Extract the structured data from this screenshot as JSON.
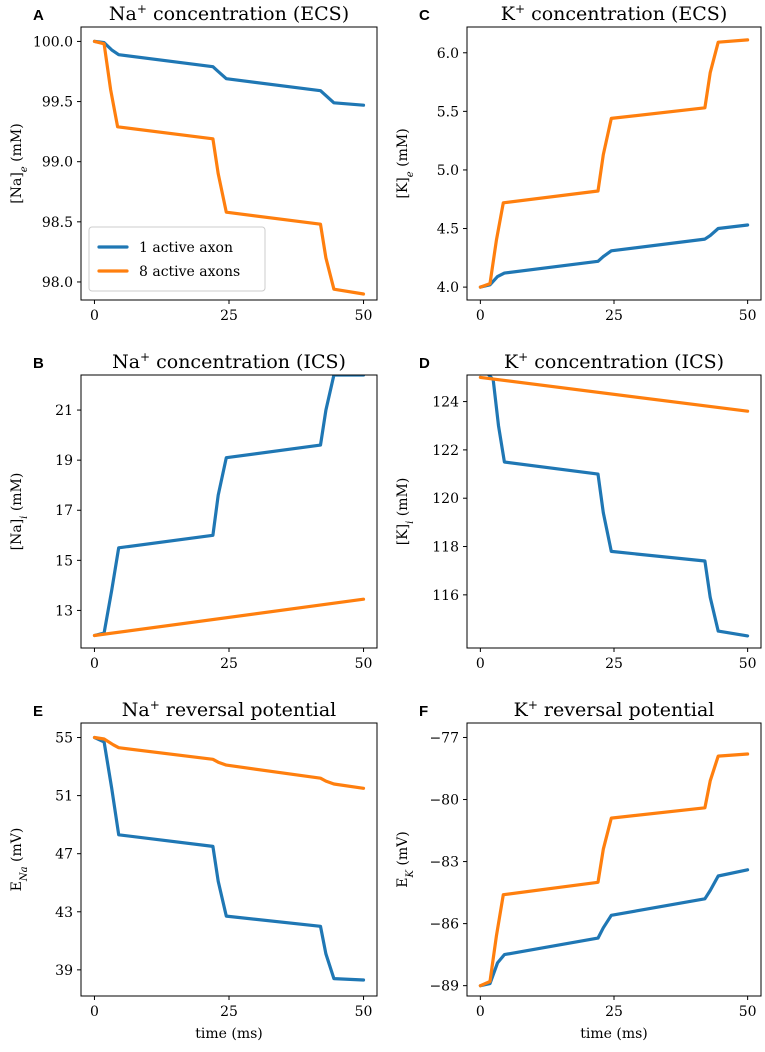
{
  "colors": {
    "active_1": "#1f77b4",
    "active_8": "#ff7f0e"
  },
  "legend": {
    "items": [
      "1 active axon",
      "8 active axons"
    ],
    "placement": "lower-left",
    "panel": 0
  },
  "chart_data": [
    {
      "type": "line",
      "letter": "A",
      "title_main": "Na",
      "title_sup": "+",
      "title_rest": " concentration (ECS)",
      "ylabel_main": "[Na]",
      "ylabel_sub": "e",
      "ylabel_rest": " (mM)",
      "xlabel": "",
      "xlim": [
        -2.5,
        52.5
      ],
      "ylim": [
        97.85,
        100.12
      ],
      "xticks": [
        0,
        25,
        50
      ],
      "xtick_labels": [
        "0",
        "25",
        "50"
      ],
      "yticks": [
        98.0,
        98.5,
        99.0,
        99.5,
        100.0
      ],
      "ytick_labels": [
        "98.0",
        "98.5",
        "99.0",
        "99.5",
        "100.0"
      ],
      "series": [
        {
          "name": "1 active axon",
          "color_key": "active_1",
          "x": [
            0,
            1.8,
            3.2,
            4.5,
            22,
            23,
            24.5,
            42,
            43,
            44.5,
            50
          ],
          "y": [
            100.0,
            99.99,
            99.93,
            99.89,
            99.79,
            99.75,
            99.69,
            99.59,
            99.55,
            99.49,
            99.47
          ]
        },
        {
          "name": "8 active axons",
          "color_key": "active_8",
          "x": [
            0,
            1.8,
            3,
            4.3,
            22,
            23,
            24.5,
            42,
            43,
            44.5,
            50
          ],
          "y": [
            100.0,
            99.98,
            99.6,
            99.29,
            99.19,
            98.9,
            98.58,
            98.48,
            98.2,
            97.94,
            97.9
          ]
        }
      ]
    },
    {
      "type": "line",
      "letter": "C",
      "title_main": "K",
      "title_sup": "+",
      "title_rest": " concentration (ECS)",
      "ylabel_main": "[K]",
      "ylabel_sub": "e",
      "ylabel_rest": " (mM)",
      "xlabel": "",
      "xlim": [
        -2.5,
        52.5
      ],
      "ylim": [
        3.89,
        6.22
      ],
      "xticks": [
        0,
        25,
        50
      ],
      "xtick_labels": [
        "0",
        "25",
        "50"
      ],
      "yticks": [
        4.0,
        4.5,
        5.0,
        5.5,
        6.0
      ],
      "ytick_labels": [
        "4.0",
        "4.5",
        "5.0",
        "5.5",
        "6.0"
      ],
      "series": [
        {
          "name": "1 active axon",
          "color_key": "active_1",
          "x": [
            0,
            1.8,
            3.2,
            4.5,
            22,
            23,
            24.5,
            42,
            43,
            44.5,
            50
          ],
          "y": [
            4.0,
            4.02,
            4.09,
            4.12,
            4.22,
            4.26,
            4.31,
            4.41,
            4.44,
            4.5,
            4.53
          ]
        },
        {
          "name": "8 active axons",
          "color_key": "active_8",
          "x": [
            0,
            1.8,
            3,
            4.3,
            22,
            23,
            24.5,
            42,
            43,
            44.5,
            50
          ],
          "y": [
            4.0,
            4.03,
            4.4,
            4.72,
            4.82,
            5.13,
            5.44,
            5.53,
            5.83,
            6.09,
            6.11
          ]
        }
      ]
    },
    {
      "type": "line",
      "letter": "B",
      "title_main": "Na",
      "title_sup": "+",
      "title_rest": " concentration (ICS)",
      "ylabel_main": "[Na]",
      "ylabel_sub": "i",
      "ylabel_rest": " (mM)",
      "xlabel": "",
      "xlim": [
        -2.5,
        52.5
      ],
      "ylim": [
        11.5,
        22.4
      ],
      "xticks": [
        0,
        25,
        50
      ],
      "xtick_labels": [
        "0",
        "25",
        "50"
      ],
      "yticks": [
        13,
        15,
        17,
        19,
        21
      ],
      "ytick_labels": [
        "13",
        "15",
        "17",
        "19",
        "21"
      ],
      "series": [
        {
          "name": "1 active axon",
          "color_key": "active_1",
          "x": [
            0,
            1.8,
            3.2,
            4.5,
            22,
            23,
            24.5,
            42,
            43,
            44.5,
            50
          ],
          "y": [
            12.0,
            12.1,
            13.8,
            15.5,
            16.0,
            17.6,
            19.1,
            19.6,
            21.0,
            22.4,
            22.4
          ]
        },
        {
          "name": "8 active axons",
          "color_key": "active_8",
          "x": [
            0,
            50
          ],
          "y": [
            12.0,
            13.45
          ]
        }
      ]
    },
    {
      "type": "line",
      "letter": "D",
      "title_main": "K",
      "title_sup": "+",
      "title_rest": " concentration (ICS)",
      "ylabel_main": "[K]",
      "ylabel_sub": "i",
      "ylabel_rest": " (mM)",
      "xlabel": "",
      "xlim": [
        -2.5,
        52.5
      ],
      "ylim": [
        113.8,
        125.1
      ],
      "xticks": [
        0,
        25,
        50
      ],
      "xtick_labels": [
        "0",
        "25",
        "50"
      ],
      "yticks": [
        116,
        118,
        120,
        122,
        124
      ],
      "ytick_labels": [
        "116",
        "118",
        "120",
        "122",
        "124"
      ],
      "series": [
        {
          "name": "1 active axon",
          "color_key": "active_1",
          "x": [
            1.6,
            2.4,
            3.4,
            4.5,
            22,
            23,
            24.5,
            42,
            43,
            44.5,
            50
          ],
          "y": [
            125.1,
            124.9,
            123.0,
            121.5,
            121.0,
            119.4,
            117.8,
            117.4,
            115.9,
            114.5,
            114.3
          ]
        },
        {
          "name": "8 active axons",
          "color_key": "active_8",
          "x": [
            0,
            50
          ],
          "y": [
            125.0,
            123.6
          ]
        }
      ]
    },
    {
      "type": "line",
      "letter": "E",
      "title_main": "Na",
      "title_sup": "+",
      "title_rest": " reversal potential",
      "ylabel_main": "E",
      "ylabel_sub": "Na",
      "ylabel_rest": " (mV)",
      "xlabel": "time (ms)",
      "xlim": [
        -2.5,
        52.5
      ],
      "ylim": [
        37.2,
        56.0
      ],
      "xticks": [
        0,
        25,
        50
      ],
      "xtick_labels": [
        "0",
        "25",
        "50"
      ],
      "yticks": [
        39,
        43,
        47,
        51,
        55
      ],
      "ytick_labels": [
        "39",
        "43",
        "47",
        "51",
        "55"
      ],
      "series": [
        {
          "name": "1 active axon",
          "color_key": "active_1",
          "x": [
            0,
            1.8,
            3.2,
            4.5,
            22,
            23,
            24.5,
            42,
            43,
            44.5,
            50
          ],
          "y": [
            55.0,
            54.7,
            51.5,
            48.3,
            47.5,
            45.1,
            42.7,
            42.0,
            40.1,
            38.4,
            38.3
          ]
        },
        {
          "name": "8 active axons",
          "color_key": "active_8",
          "x": [
            0,
            1.8,
            3.5,
            4.5,
            22,
            23,
            24.5,
            42,
            43,
            44.5,
            50
          ],
          "y": [
            55.0,
            54.9,
            54.5,
            54.3,
            53.5,
            53.3,
            53.1,
            52.2,
            52.0,
            51.8,
            51.5
          ]
        }
      ]
    },
    {
      "type": "line",
      "letter": "F",
      "title_main": "K",
      "title_sup": "+",
      "title_rest": " reversal potential",
      "ylabel_main": "E",
      "ylabel_sub": "K",
      "ylabel_rest": " (mV)",
      "xlabel": "time (ms)",
      "xlim": [
        -2.5,
        52.5
      ],
      "ylim": [
        -89.5,
        -76.3
      ],
      "xticks": [
        0,
        25,
        50
      ],
      "xtick_labels": [
        "0",
        "25",
        "50"
      ],
      "yticks": [
        -89,
        -86,
        -83,
        -80,
        -77
      ],
      "ytick_labels": [
        "−89",
        "−86",
        "−83",
        "−80",
        "−77"
      ],
      "series": [
        {
          "name": "1 active axon",
          "color_key": "active_1",
          "x": [
            0,
            1.8,
            3.2,
            4.5,
            22,
            23,
            24.5,
            42,
            43,
            44.5,
            50
          ],
          "y": [
            -89.0,
            -88.9,
            -87.9,
            -87.5,
            -86.7,
            -86.2,
            -85.6,
            -84.8,
            -84.4,
            -83.7,
            -83.4
          ]
        },
        {
          "name": "8 active axons",
          "color_key": "active_8",
          "x": [
            0,
            1.8,
            3,
            4.3,
            22,
            23,
            24.5,
            42,
            43,
            44.5,
            50
          ],
          "y": [
            -89.0,
            -88.8,
            -86.6,
            -84.6,
            -84.0,
            -82.4,
            -80.9,
            -80.4,
            -79.1,
            -77.9,
            -77.8
          ]
        }
      ]
    }
  ]
}
